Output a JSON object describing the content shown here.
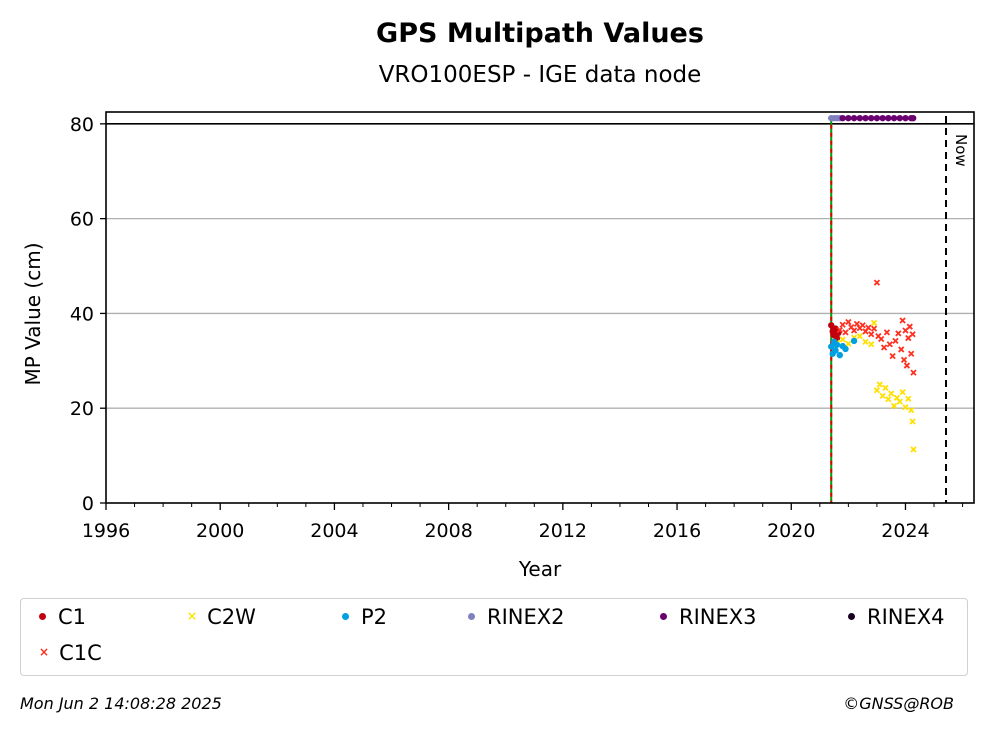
{
  "chart_data": {
    "type": "scatter",
    "title": "GPS Multipath Values",
    "subtitle": "VRO100ESP - IGE data node",
    "xlabel": "Year",
    "ylabel": "MP Value (cm)",
    "xlim": [
      1996,
      2026.4
    ],
    "ylim": [
      0,
      82.5
    ],
    "x_ticks": [
      "1996",
      "2000",
      "2004",
      "2008",
      "2012",
      "2016",
      "2020",
      "2024"
    ],
    "y_ticks": [
      "0",
      "20",
      "40",
      "60",
      "80"
    ],
    "grid": "horizontal",
    "now_label": "Now",
    "now_year": 2025.42,
    "start_marker_year": 2021.4,
    "series": [
      {
        "name": "C1",
        "color": "#c0000f",
        "marker": "dot",
        "points": [
          [
            2021.4,
            37.5
          ],
          [
            2021.45,
            36.2
          ],
          [
            2021.5,
            35.4
          ],
          [
            2021.55,
            36.8
          ],
          [
            2021.6,
            34.8
          ],
          [
            2021.65,
            35.9
          ]
        ]
      },
      {
        "name": "C2W",
        "color": "#ffe000",
        "marker": "x",
        "points": [
          [
            2021.6,
            33.8
          ],
          [
            2021.8,
            34.5
          ],
          [
            2022.0,
            33.6
          ],
          [
            2022.2,
            34.9
          ],
          [
            2022.4,
            35.2
          ],
          [
            2022.6,
            34.0
          ],
          [
            2022.8,
            33.5
          ],
          [
            2022.9,
            38.0
          ],
          [
            2023.0,
            23.8
          ],
          [
            2023.1,
            25.0
          ],
          [
            2023.2,
            22.6
          ],
          [
            2023.3,
            24.3
          ],
          [
            2023.4,
            21.9
          ],
          [
            2023.5,
            23.1
          ],
          [
            2023.6,
            20.5
          ],
          [
            2023.7,
            22.2
          ],
          [
            2023.8,
            21.4
          ],
          [
            2023.9,
            23.4
          ],
          [
            2024.0,
            20.2
          ],
          [
            2024.1,
            22.0
          ],
          [
            2024.2,
            19.6
          ],
          [
            2024.25,
            17.2
          ],
          [
            2024.28,
            11.3
          ]
        ]
      },
      {
        "name": "P2",
        "color": "#00a0e0",
        "marker": "dot",
        "points": [
          [
            2021.4,
            33.0
          ],
          [
            2021.45,
            31.5
          ],
          [
            2021.5,
            34.0
          ],
          [
            2021.55,
            32.2
          ],
          [
            2021.6,
            33.4
          ],
          [
            2021.7,
            31.2
          ],
          [
            2021.8,
            33.1
          ],
          [
            2021.9,
            32.5
          ],
          [
            2022.2,
            34.2
          ]
        ]
      },
      {
        "name": "RINEX2",
        "color": "#8080c0",
        "marker": "dot",
        "points": [
          [
            2021.4,
            81.2
          ],
          [
            2021.5,
            81.2
          ],
          [
            2021.6,
            81.2
          ],
          [
            2021.7,
            81.2
          ]
        ]
      },
      {
        "name": "RINEX3",
        "color": "#6a0070",
        "marker": "dot",
        "points": [
          [
            2021.8,
            81.2
          ],
          [
            2022.0,
            81.2
          ],
          [
            2022.2,
            81.2
          ],
          [
            2022.4,
            81.2
          ],
          [
            2022.6,
            81.2
          ],
          [
            2022.8,
            81.2
          ],
          [
            2023.0,
            81.2
          ],
          [
            2023.2,
            81.2
          ],
          [
            2023.4,
            81.2
          ],
          [
            2023.6,
            81.2
          ],
          [
            2023.8,
            81.2
          ],
          [
            2024.0,
            81.2
          ],
          [
            2024.2,
            81.2
          ],
          [
            2024.27,
            81.2
          ]
        ]
      },
      {
        "name": "RINEX4",
        "color": "#180020",
        "marker": "dot",
        "points": []
      },
      {
        "name": "C1C",
        "color": "#ff3020",
        "marker": "x",
        "points": [
          [
            2021.7,
            36.5
          ],
          [
            2021.8,
            37.6
          ],
          [
            2021.9,
            36.0
          ],
          [
            2022.0,
            38.2
          ],
          [
            2022.1,
            37.1
          ],
          [
            2022.2,
            36.4
          ],
          [
            2022.3,
            37.8
          ],
          [
            2022.4,
            36.9
          ],
          [
            2022.5,
            37.5
          ],
          [
            2022.6,
            36.2
          ],
          [
            2022.7,
            37.0
          ],
          [
            2022.8,
            35.6
          ],
          [
            2022.9,
            36.8
          ],
          [
            2023.0,
            46.5
          ],
          [
            2023.05,
            35.2
          ],
          [
            2023.15,
            34.6
          ],
          [
            2023.25,
            32.8
          ],
          [
            2023.35,
            36.0
          ],
          [
            2023.45,
            33.5
          ],
          [
            2023.55,
            31.0
          ],
          [
            2023.65,
            34.2
          ],
          [
            2023.75,
            35.8
          ],
          [
            2023.85,
            32.4
          ],
          [
            2023.9,
            38.5
          ],
          [
            2023.95,
            30.2
          ],
          [
            2024.0,
            36.4
          ],
          [
            2024.05,
            29.0
          ],
          [
            2024.1,
            34.8
          ],
          [
            2024.15,
            37.2
          ],
          [
            2024.2,
            31.5
          ],
          [
            2024.25,
            35.6
          ],
          [
            2024.28,
            27.5
          ]
        ]
      }
    ]
  },
  "legend": [
    {
      "label": "C1",
      "color": "#c0000f",
      "marker": "dot"
    },
    {
      "label": "C2W",
      "color": "#ffe000",
      "marker": "x"
    },
    {
      "label": "P2",
      "color": "#00a0e0",
      "marker": "dot"
    },
    {
      "label": "RINEX2",
      "color": "#8080c0",
      "marker": "dot"
    },
    {
      "label": "RINEX3",
      "color": "#6a0070",
      "marker": "dot"
    },
    {
      "label": "RINEX4",
      "color": "#180020",
      "marker": "dot"
    },
    {
      "label": "C1C",
      "color": "#ff3020",
      "marker": "x"
    }
  ],
  "footer": {
    "timestamp": "Mon Jun  2 14:08:28 2025",
    "credit": "©GNSS@ROB"
  }
}
